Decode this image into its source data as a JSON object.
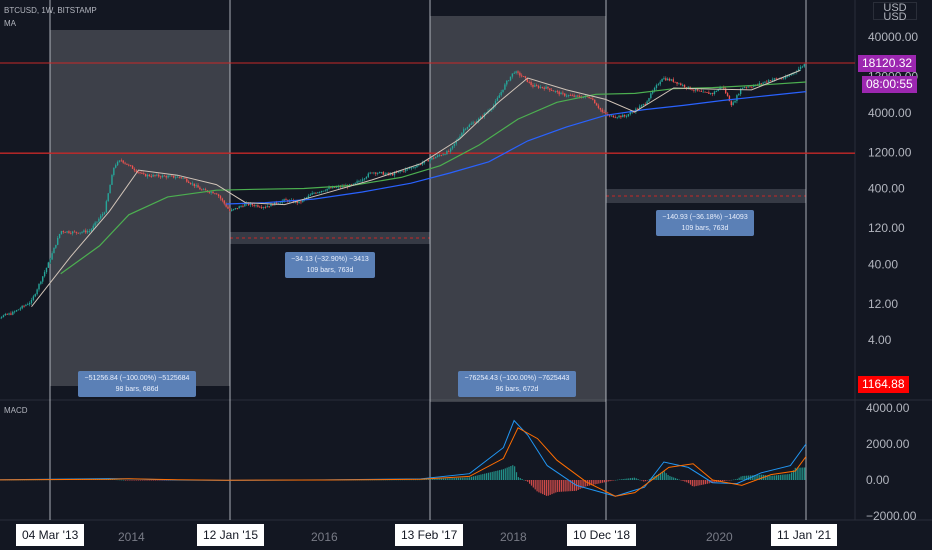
{
  "header": {
    "symbol": "BTCUSD, 1W, BITSTAMP",
    "ma_label": "MA",
    "currency_button": "USD",
    "currency_button_lines": [
      "USD",
      "USD"
    ]
  },
  "colors": {
    "background": "#131722",
    "up": "#26a69a",
    "down": "#ef5350",
    "ma_short": "#d1c4b8",
    "ma_green": "#4caf50",
    "ma_blue": "#2962ff",
    "macd_line": "#2196f3",
    "signal_line": "#ff6d00",
    "hline": "#c62828",
    "zone": "#ffffff",
    "tag_purple": "#9c27b0",
    "tag_red": "#ff0000"
  },
  "price_tags": {
    "last_price": "18120.32",
    "countdown": "08:00:55",
    "red_level": "1164.88"
  },
  "macd": {
    "label": "MACD"
  },
  "measurements": [
    {
      "lines": [
        "−51256.84 (−100.00%) −5125684",
        "98 bars, 686d"
      ]
    },
    {
      "lines": [
        "−34.13 (−32.90%) −3413",
        "109 bars, 763d"
      ]
    },
    {
      "lines": [
        "−76254.43 (−100.00%) −7625443",
        "96 bars, 672d"
      ]
    },
    {
      "lines": [
        "−140.93 (−36.18%) −14093",
        "109 bars, 763d"
      ]
    }
  ],
  "date_markers": [
    "04 Mar '13",
    "12 Jan '15",
    "13 Feb '17",
    "10 Dec '18",
    "11 Jan '21"
  ],
  "chart_data": [
    {
      "type": "line",
      "title": "BTCUSD, 1W, BITSTAMP",
      "description_series": "weekly price (approx. closes) with moving averages",
      "y_scale": "log",
      "y_ticks": [
        "40000.00",
        "12000.00",
        "4000.00",
        "1200.00",
        "400.00",
        "120.00",
        "40.00",
        "12.00",
        "4.00"
      ],
      "y_tick_values": [
        40000,
        12000,
        4000,
        1200,
        400,
        120,
        40,
        12,
        4
      ],
      "x_ticks": [
        "2014",
        "2016",
        "2018",
        "2020"
      ],
      "x_tick_dates": [
        2014.0,
        2016.0,
        2018.0,
        2020.0
      ],
      "horizontal_lines": [
        18120.32,
        1164.88
      ],
      "price": {
        "x": [
          2012.5,
          2012.8,
          2013.0,
          2013.17,
          2013.3,
          2013.45,
          2013.6,
          2013.75,
          2013.85,
          2013.92,
          2014.0,
          2014.15,
          2014.35,
          2014.55,
          2014.75,
          2014.9,
          2015.04,
          2015.2,
          2015.4,
          2015.6,
          2015.75,
          2015.9,
          2016.05,
          2016.3,
          2016.5,
          2016.7,
          2016.9,
          2017.12,
          2017.3,
          2017.45,
          2017.6,
          2017.75,
          2017.88,
          2017.96,
          2018.05,
          2018.15,
          2018.3,
          2018.45,
          2018.6,
          2018.75,
          2018.87,
          2018.94,
          2019.1,
          2019.3,
          2019.48,
          2019.6,
          2019.75,
          2019.9,
          2020.0,
          2020.1,
          2020.2,
          2020.3,
          2020.45,
          2020.6,
          2020.75,
          2020.88,
          2020.96
        ],
        "y": [
          7,
          9,
          13,
          40,
          110,
          105,
          110,
          200,
          800,
          950,
          800,
          600,
          580,
          560,
          380,
          350,
          200,
          250,
          230,
          280,
          260,
          350,
          400,
          440,
          660,
          610,
          750,
          1000,
          1250,
          2500,
          3300,
          5000,
          10000,
          14000,
          12000,
          9000,
          8500,
          7000,
          6500,
          6400,
          4000,
          3600,
          3600,
          5200,
          11500,
          10500,
          8500,
          7300,
          7200,
          9000,
          5000,
          8700,
          9200,
          11000,
          11500,
          15000,
          18120
        ]
      },
      "ma_short": {
        "x": [
          2013.0,
          2013.4,
          2013.8,
          2014.1,
          2014.5,
          2014.9,
          2015.2,
          2015.6,
          2016.0,
          2016.5,
          2017.0,
          2017.4,
          2017.8,
          2018.1,
          2018.5,
          2018.9,
          2019.2,
          2019.6,
          2020.0,
          2020.4,
          2020.9
        ],
        "y": [
          11,
          50,
          200,
          700,
          600,
          450,
          260,
          245,
          340,
          520,
          850,
          1800,
          5500,
          11500,
          8000,
          6000,
          4100,
          8500,
          8200,
          8000,
          14500
        ]
      },
      "ma_green": {
        "x": [
          2013.3,
          2013.7,
          2014.0,
          2014.4,
          2014.9,
          2015.3,
          2015.8,
          2016.3,
          2016.8,
          2017.2,
          2017.6,
          2018.0,
          2018.4,
          2018.8,
          2019.2,
          2019.6,
          2020.0,
          2020.5,
          2020.96
        ],
        "y": [
          30,
          70,
          180,
          310,
          380,
          390,
          400,
          440,
          560,
          800,
          1500,
          3300,
          5500,
          7000,
          7200,
          8300,
          8600,
          9300,
          10200
        ]
      },
      "ma_blue": {
        "x": [
          2015.0,
          2015.4,
          2015.9,
          2016.4,
          2016.9,
          2017.3,
          2017.7,
          2018.1,
          2018.5,
          2018.9,
          2019.3,
          2019.7,
          2020.1,
          2020.5,
          2020.96
        ],
        "y": [
          250,
          260,
          290,
          360,
          470,
          640,
          900,
          1700,
          2600,
          3700,
          4400,
          5000,
          5800,
          6600,
          7600
        ]
      }
    },
    {
      "type": "bar",
      "title": "MACD",
      "y_ticks": [
        "4000.00",
        "2000.00",
        "0.00",
        "−2000.00"
      ],
      "y_tick_values": [
        4000,
        2000,
        0,
        -2000
      ],
      "macd_line": {
        "x": [
          2012.5,
          2013.8,
          2014.0,
          2014.5,
          2015.0,
          2016.0,
          2017.0,
          2017.5,
          2017.85,
          2017.96,
          2018.1,
          2018.3,
          2018.6,
          2018.9,
          2019.0,
          2019.3,
          2019.5,
          2019.75,
          2020.0,
          2020.25,
          2020.5,
          2020.8,
          2020.96
        ],
        "y": [
          0,
          80,
          60,
          0,
          -20,
          5,
          60,
          350,
          1800,
          3300,
          2500,
          800,
          -300,
          -750,
          -900,
          -400,
          1000,
          700,
          -150,
          -200,
          400,
          800,
          2000
        ]
      },
      "signal_line": {
        "x": [
          2012.5,
          2013.8,
          2014.0,
          2014.5,
          2015.0,
          2016.0,
          2017.0,
          2017.5,
          2017.85,
          2018.0,
          2018.2,
          2018.4,
          2018.7,
          2019.0,
          2019.2,
          2019.55,
          2019.8,
          2020.0,
          2020.3,
          2020.6,
          2020.85,
          2020.96
        ],
        "y": [
          0,
          40,
          70,
          10,
          -10,
          0,
          40,
          200,
          1200,
          2900,
          2300,
          1100,
          -100,
          -900,
          -700,
          700,
          900,
          0,
          -300,
          300,
          500,
          1300
        ]
      }
    }
  ]
}
